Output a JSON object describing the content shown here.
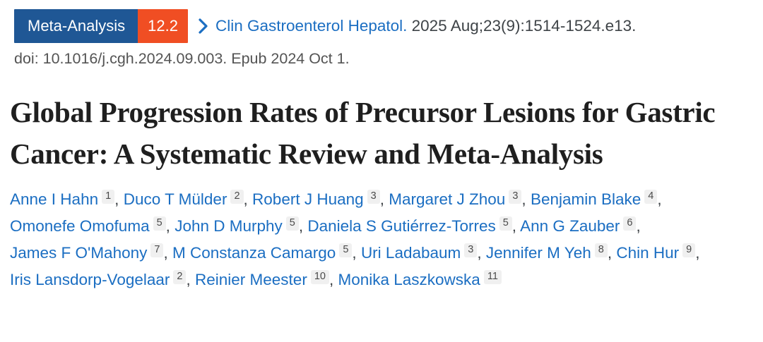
{
  "colors": {
    "badge_blue": "#1f5795",
    "badge_orange": "#f04e23",
    "link_blue": "#1b6ec2",
    "text_dark": "#3e4347",
    "text_gray": "#545454",
    "title_color": "#1f1f1f",
    "sup_bg": "#f0f0f0",
    "sup_text": "#4a4a4a"
  },
  "badge": {
    "type_label": "Meta-Analysis",
    "impact_factor": "12.2"
  },
  "citation": {
    "journal": "Clin Gastroenterol Hepatol.",
    "details": "2025 Aug;23(9):1514-1524.e13.",
    "doi_line": "doi: 10.1016/j.cgh.2024.09.003. Epub 2024 Oct 1."
  },
  "article": {
    "title": "Global Progression Rates of Precursor Lesions for Gastric Cancer: A Systematic Review and Meta-Analysis"
  },
  "authors": [
    {
      "name": "Anne I Hahn",
      "sup": "1"
    },
    {
      "name": "Duco T Mülder",
      "sup": "2"
    },
    {
      "name": "Robert J Huang",
      "sup": "3"
    },
    {
      "name": "Margaret J Zhou",
      "sup": "3"
    },
    {
      "name": "Benjamin Blake",
      "sup": "4"
    },
    {
      "name": "Omonefe Omofuma",
      "sup": "5"
    },
    {
      "name": "John D Murphy",
      "sup": "5"
    },
    {
      "name": "Daniela S Gutiérrez-Torres",
      "sup": "5"
    },
    {
      "name": "Ann G Zauber",
      "sup": "6"
    },
    {
      "name": "James F O'Mahony",
      "sup": "7"
    },
    {
      "name": "M Constanza Camargo",
      "sup": "5"
    },
    {
      "name": "Uri Ladabaum",
      "sup": "3"
    },
    {
      "name": "Jennifer M Yeh",
      "sup": "8"
    },
    {
      "name": "Chin Hur",
      "sup": "9"
    },
    {
      "name": "Iris Lansdorp-Vogelaar",
      "sup": "2"
    },
    {
      "name": "Reinier Meester",
      "sup": "10"
    },
    {
      "name": "Monika Laszkowska",
      "sup": "11"
    }
  ]
}
